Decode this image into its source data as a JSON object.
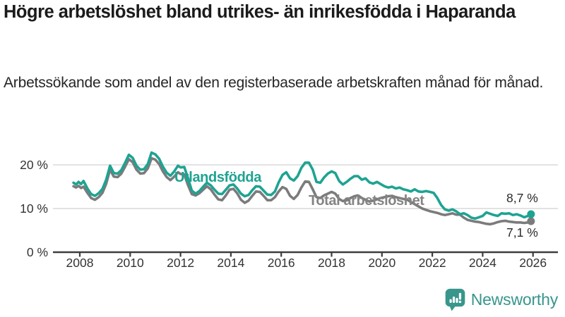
{
  "header": {
    "title": "Högre arbetslöshet bland utrikes- än inrikesfödda i Haparanda",
    "subtitle": "Arbetssökande som andel av den registerbaserade arbetskraften månad för månad."
  },
  "footer": {
    "brand": "Newsworthy",
    "brand_color": "#38968C",
    "logo_icon": "bar-chart-speech-bubble-icon"
  },
  "chart_data": {
    "type": "line",
    "title": "Högre arbetslöshet bland utrikes- än inrikesfödda i Haparanda",
    "subtitle": "Arbetssökande som andel av den registerbaserade arbetskraften månad för månad.",
    "xlabel": "",
    "ylabel": "",
    "xlim": [
      2007.6,
      2026.6
    ],
    "ylim": [
      0,
      24
    ],
    "grid": "horizontal",
    "grid_color": "#D9D9D9",
    "axis_color": "#3D3D3D",
    "text_color": "#333333",
    "x_ticks": [
      2008,
      2010,
      2012,
      2014,
      2016,
      2018,
      2020,
      2022,
      2024,
      2026
    ],
    "y_ticks": [
      {
        "value": 0,
        "label": "0 %"
      },
      {
        "value": 10,
        "label": "10 %"
      },
      {
        "value": 20,
        "label": "20 %"
      }
    ],
    "unit": "percent",
    "series": [
      {
        "name": "Utlandsfödda",
        "color": "#1EA392",
        "end_label": "8,7 %",
        "end_value": 8.7,
        "points": [
          [
            2007.75,
            15.9
          ],
          [
            2007.85,
            15.5
          ],
          [
            2007.95,
            16.1
          ],
          [
            2008.05,
            15.6
          ],
          [
            2008.15,
            16.3
          ],
          [
            2008.3,
            14.6
          ],
          [
            2008.45,
            13.3
          ],
          [
            2008.6,
            12.9
          ],
          [
            2008.75,
            13.5
          ],
          [
            2008.9,
            14.5
          ],
          [
            2009.05,
            16.6
          ],
          [
            2009.2,
            19.8
          ],
          [
            2009.35,
            18.1
          ],
          [
            2009.5,
            18.0
          ],
          [
            2009.65,
            18.8
          ],
          [
            2009.8,
            20.5
          ],
          [
            2009.95,
            22.3
          ],
          [
            2010.1,
            21.6
          ],
          [
            2010.25,
            19.8
          ],
          [
            2010.4,
            18.9
          ],
          [
            2010.55,
            19.0
          ],
          [
            2010.7,
            20.2
          ],
          [
            2010.85,
            22.8
          ],
          [
            2011.0,
            22.4
          ],
          [
            2011.15,
            21.4
          ],
          [
            2011.3,
            19.6
          ],
          [
            2011.45,
            18.2
          ],
          [
            2011.6,
            17.5
          ],
          [
            2011.75,
            18.5
          ],
          [
            2011.9,
            19.8
          ],
          [
            2012.0,
            19.4
          ],
          [
            2012.15,
            19.5
          ],
          [
            2012.3,
            16.9
          ],
          [
            2012.45,
            14.1
          ],
          [
            2012.6,
            13.4
          ],
          [
            2012.75,
            14.0
          ],
          [
            2012.9,
            15.0
          ],
          [
            2013.05,
            15.9
          ],
          [
            2013.2,
            15.3
          ],
          [
            2013.35,
            14.3
          ],
          [
            2013.5,
            13.4
          ],
          [
            2013.65,
            13.3
          ],
          [
            2013.8,
            14.3
          ],
          [
            2013.95,
            15.3
          ],
          [
            2014.1,
            15.5
          ],
          [
            2014.25,
            14.6
          ],
          [
            2014.4,
            13.4
          ],
          [
            2014.55,
            12.8
          ],
          [
            2014.7,
            13.1
          ],
          [
            2014.85,
            14.2
          ],
          [
            2015.0,
            15.1
          ],
          [
            2015.15,
            15.0
          ],
          [
            2015.3,
            14.1
          ],
          [
            2015.45,
            13.2
          ],
          [
            2015.6,
            13.1
          ],
          [
            2015.75,
            13.9
          ],
          [
            2015.9,
            16.0
          ],
          [
            2016.05,
            17.7
          ],
          [
            2016.2,
            18.3
          ],
          [
            2016.35,
            16.9
          ],
          [
            2016.5,
            16.4
          ],
          [
            2016.65,
            17.4
          ],
          [
            2016.8,
            19.3
          ],
          [
            2016.95,
            20.5
          ],
          [
            2017.1,
            20.5
          ],
          [
            2017.25,
            18.9
          ],
          [
            2017.4,
            16.1
          ],
          [
            2017.55,
            15.9
          ],
          [
            2017.7,
            17.1
          ],
          [
            2017.85,
            18.0
          ],
          [
            2018.0,
            18.5
          ],
          [
            2018.15,
            18.1
          ],
          [
            2018.3,
            16.3
          ],
          [
            2018.45,
            15.5
          ],
          [
            2018.6,
            16.1
          ],
          [
            2018.75,
            16.8
          ],
          [
            2018.9,
            17.4
          ],
          [
            2019.05,
            17.4
          ],
          [
            2019.2,
            16.6
          ],
          [
            2019.35,
            16.9
          ],
          [
            2019.5,
            16.0
          ],
          [
            2019.65,
            15.7
          ],
          [
            2019.8,
            16.1
          ],
          [
            2019.95,
            15.6
          ],
          [
            2020.1,
            15.1
          ],
          [
            2020.25,
            14.8
          ],
          [
            2020.4,
            15.0
          ],
          [
            2020.55,
            14.6
          ],
          [
            2020.7,
            14.8
          ],
          [
            2020.85,
            14.4
          ],
          [
            2021.0,
            14.2
          ],
          [
            2021.15,
            13.9
          ],
          [
            2021.3,
            14.4
          ],
          [
            2021.45,
            13.9
          ],
          [
            2021.6,
            13.8
          ],
          [
            2021.75,
            14.0
          ],
          [
            2021.9,
            13.8
          ],
          [
            2022.05,
            13.6
          ],
          [
            2022.2,
            12.4
          ],
          [
            2022.35,
            10.8
          ],
          [
            2022.5,
            9.8
          ],
          [
            2022.65,
            9.5
          ],
          [
            2022.8,
            9.8
          ],
          [
            2022.95,
            9.35
          ],
          [
            2023.1,
            8.7
          ],
          [
            2023.25,
            8.9
          ],
          [
            2023.4,
            8.5
          ],
          [
            2023.55,
            7.9
          ],
          [
            2023.7,
            7.7
          ],
          [
            2023.85,
            8.0
          ],
          [
            2024.0,
            8.3
          ],
          [
            2024.15,
            9.1
          ],
          [
            2024.3,
            8.8
          ],
          [
            2024.45,
            8.5
          ],
          [
            2024.6,
            8.3
          ],
          [
            2024.75,
            8.9
          ],
          [
            2024.9,
            8.8
          ],
          [
            2025.05,
            8.9
          ],
          [
            2025.2,
            8.5
          ],
          [
            2025.35,
            8.7
          ],
          [
            2025.5,
            8.4
          ],
          [
            2025.65,
            8.0
          ],
          [
            2025.8,
            8.3
          ],
          [
            2025.92,
            8.7
          ]
        ]
      },
      {
        "name": "Total arbetslöshet",
        "color": "#7B7B7B",
        "label_color": "#848484",
        "end_label": "7,1 %",
        "end_value": 7.1,
        "points": [
          [
            2007.75,
            15.1
          ],
          [
            2007.85,
            14.8
          ],
          [
            2007.95,
            15.2
          ],
          [
            2008.05,
            14.7
          ],
          [
            2008.15,
            15.0
          ],
          [
            2008.3,
            13.6
          ],
          [
            2008.45,
            12.4
          ],
          [
            2008.6,
            12.0
          ],
          [
            2008.75,
            12.6
          ],
          [
            2008.9,
            13.6
          ],
          [
            2009.05,
            15.7
          ],
          [
            2009.2,
            18.9
          ],
          [
            2009.35,
            17.3
          ],
          [
            2009.5,
            17.2
          ],
          [
            2009.65,
            18.0
          ],
          [
            2009.8,
            19.6
          ],
          [
            2009.95,
            21.3
          ],
          [
            2010.1,
            20.6
          ],
          [
            2010.25,
            18.9
          ],
          [
            2010.4,
            18.0
          ],
          [
            2010.55,
            18.1
          ],
          [
            2010.7,
            19.2
          ],
          [
            2010.85,
            21.5
          ],
          [
            2011.0,
            21.2
          ],
          [
            2011.15,
            20.2
          ],
          [
            2011.3,
            18.5
          ],
          [
            2011.45,
            17.2
          ],
          [
            2011.6,
            16.5
          ],
          [
            2011.75,
            17.3
          ],
          [
            2011.9,
            18.3
          ],
          [
            2012.0,
            17.9
          ],
          [
            2012.15,
            17.8
          ],
          [
            2012.3,
            15.3
          ],
          [
            2012.45,
            13.3
          ],
          [
            2012.6,
            13.0
          ],
          [
            2012.75,
            13.5
          ],
          [
            2012.9,
            14.3
          ],
          [
            2013.05,
            15.1
          ],
          [
            2013.2,
            14.4
          ],
          [
            2013.35,
            13.2
          ],
          [
            2013.5,
            12.1
          ],
          [
            2013.65,
            11.9
          ],
          [
            2013.8,
            13.0
          ],
          [
            2013.95,
            14.3
          ],
          [
            2014.1,
            14.5
          ],
          [
            2014.25,
            13.5
          ],
          [
            2014.4,
            12.0
          ],
          [
            2014.55,
            11.3
          ],
          [
            2014.7,
            11.8
          ],
          [
            2014.85,
            12.9
          ],
          [
            2015.0,
            13.9
          ],
          [
            2015.15,
            13.8
          ],
          [
            2015.3,
            12.9
          ],
          [
            2015.45,
            11.9
          ],
          [
            2015.6,
            11.9
          ],
          [
            2015.75,
            12.6
          ],
          [
            2015.9,
            13.9
          ],
          [
            2016.05,
            14.9
          ],
          [
            2016.2,
            14.5
          ],
          [
            2016.35,
            12.9
          ],
          [
            2016.5,
            12.2
          ],
          [
            2016.65,
            13.1
          ],
          [
            2016.8,
            14.8
          ],
          [
            2016.95,
            16.2
          ],
          [
            2017.1,
            16.1
          ],
          [
            2017.25,
            14.4
          ],
          [
            2017.4,
            12.6
          ],
          [
            2017.55,
            12.4
          ],
          [
            2017.7,
            13.0
          ],
          [
            2017.85,
            13.4
          ],
          [
            2018.0,
            13.8
          ],
          [
            2018.15,
            13.4
          ],
          [
            2018.3,
            12.2
          ],
          [
            2018.45,
            11.7
          ],
          [
            2018.6,
            12.0
          ],
          [
            2018.75,
            12.4
          ],
          [
            2018.9,
            12.8
          ],
          [
            2019.05,
            13.0
          ],
          [
            2019.2,
            12.4
          ],
          [
            2019.35,
            12.0
          ],
          [
            2019.5,
            11.6
          ],
          [
            2019.65,
            11.8
          ],
          [
            2019.8,
            12.1
          ],
          [
            2019.95,
            12.4
          ],
          [
            2020.1,
            12.6
          ],
          [
            2020.25,
            12.8
          ],
          [
            2020.4,
            12.9
          ],
          [
            2020.55,
            12.6
          ],
          [
            2020.7,
            12.4
          ],
          [
            2020.85,
            12.2
          ],
          [
            2021.0,
            12.0
          ],
          [
            2021.15,
            11.5
          ],
          [
            2021.3,
            11.0
          ],
          [
            2021.45,
            10.5
          ],
          [
            2021.6,
            10.0
          ],
          [
            2021.75,
            9.7
          ],
          [
            2021.9,
            9.4
          ],
          [
            2022.05,
            9.2
          ],
          [
            2022.2,
            9.0
          ],
          [
            2022.35,
            8.7
          ],
          [
            2022.5,
            8.5
          ],
          [
            2022.65,
            8.7
          ],
          [
            2022.8,
            8.9
          ],
          [
            2022.95,
            8.6
          ],
          [
            2023.1,
            8.6
          ],
          [
            2023.25,
            7.9
          ],
          [
            2023.4,
            7.4
          ],
          [
            2023.55,
            7.2
          ],
          [
            2023.7,
            7.0
          ],
          [
            2023.85,
            6.9
          ],
          [
            2024.0,
            6.7
          ],
          [
            2024.15,
            6.5
          ],
          [
            2024.3,
            6.4
          ],
          [
            2024.45,
            6.6
          ],
          [
            2024.6,
            6.9
          ],
          [
            2024.75,
            7.1
          ],
          [
            2024.9,
            7.2
          ],
          [
            2025.05,
            7.0
          ],
          [
            2025.2,
            6.9
          ],
          [
            2025.35,
            6.8
          ],
          [
            2025.5,
            6.8
          ],
          [
            2025.65,
            6.7
          ],
          [
            2025.8,
            6.8
          ],
          [
            2025.92,
            7.1
          ]
        ]
      }
    ]
  }
}
